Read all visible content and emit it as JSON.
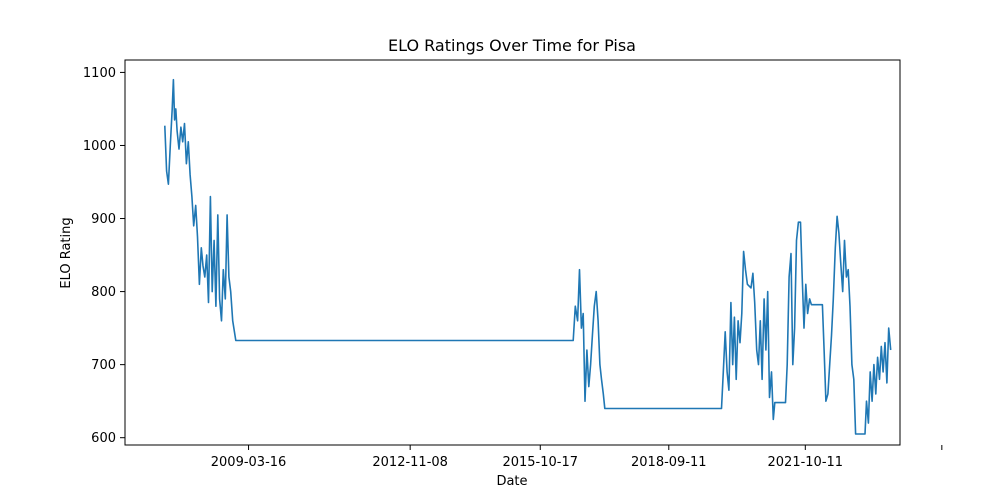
{
  "chart_data": {
    "type": "line",
    "title": "ELO Ratings Over Time for Pisa",
    "xlabel": "Date",
    "ylabel": "ELO Rating",
    "grid": false,
    "legend": "none",
    "ylim": [
      590,
      1117
    ],
    "xlim": [
      "2006-06-01",
      "2023-12-01"
    ],
    "x_ticks": [
      "2009-03-16",
      "2012-11-08",
      "2015-10-17",
      "2018-09-11",
      "2021-10-11",
      ""
    ],
    "y_ticks": [
      600,
      700,
      800,
      900,
      1000,
      1100
    ],
    "series": [
      {
        "color": "#1f77b4",
        "points": [
          [
            "2007-04-25",
            1027
          ],
          [
            "2007-05-10",
            965
          ],
          [
            "2007-05-25",
            947
          ],
          [
            "2007-06-10",
            1000
          ],
          [
            "2007-06-25",
            1050
          ],
          [
            "2007-07-05",
            1090
          ],
          [
            "2007-07-15",
            1035
          ],
          [
            "2007-07-25",
            1050
          ],
          [
            "2007-08-05",
            1020
          ],
          [
            "2007-08-20",
            995
          ],
          [
            "2007-09-05",
            1025
          ],
          [
            "2007-09-20",
            1005
          ],
          [
            "2007-10-05",
            1030
          ],
          [
            "2007-10-20",
            975
          ],
          [
            "2007-11-05",
            1005
          ],
          [
            "2007-11-20",
            960
          ],
          [
            "2007-12-05",
            930
          ],
          [
            "2007-12-20",
            890
          ],
          [
            "2008-01-05",
            918
          ],
          [
            "2008-01-20",
            875
          ],
          [
            "2008-02-05",
            810
          ],
          [
            "2008-02-20",
            860
          ],
          [
            "2008-03-05",
            835
          ],
          [
            "2008-03-20",
            820
          ],
          [
            "2008-04-05",
            850
          ],
          [
            "2008-04-20",
            785
          ],
          [
            "2008-05-05",
            930
          ],
          [
            "2008-05-20",
            800
          ],
          [
            "2008-06-05",
            870
          ],
          [
            "2008-06-20",
            780
          ],
          [
            "2008-07-05",
            905
          ],
          [
            "2008-07-20",
            790
          ],
          [
            "2008-08-05",
            760
          ],
          [
            "2008-08-20",
            830
          ],
          [
            "2008-09-05",
            790
          ],
          [
            "2008-09-20",
            905
          ],
          [
            "2008-10-05",
            820
          ],
          [
            "2008-10-20",
            800
          ],
          [
            "2008-11-05",
            760
          ],
          [
            "2008-12-01",
            733
          ],
          [
            "2016-07-15",
            733
          ],
          [
            "2016-08-01",
            780
          ],
          [
            "2016-08-20",
            760
          ],
          [
            "2016-09-05",
            830
          ],
          [
            "2016-09-20",
            750
          ],
          [
            "2016-10-05",
            770
          ],
          [
            "2016-10-20",
            650
          ],
          [
            "2016-11-05",
            720
          ],
          [
            "2016-11-20",
            670
          ],
          [
            "2016-12-05",
            700
          ],
          [
            "2016-12-20",
            740
          ],
          [
            "2017-01-05",
            780
          ],
          [
            "2017-01-20",
            800
          ],
          [
            "2017-02-05",
            760
          ],
          [
            "2017-02-20",
            700
          ],
          [
            "2017-03-05",
            680
          ],
          [
            "2017-03-20",
            660
          ],
          [
            "2017-04-01",
            640
          ],
          [
            "2019-11-20",
            640
          ],
          [
            "2019-12-05",
            690
          ],
          [
            "2019-12-20",
            745
          ],
          [
            "2020-01-05",
            690
          ],
          [
            "2020-01-20",
            665
          ],
          [
            "2020-02-05",
            785
          ],
          [
            "2020-02-20",
            700
          ],
          [
            "2020-03-05",
            765
          ],
          [
            "2020-03-20",
            680
          ],
          [
            "2020-04-05",
            760
          ],
          [
            "2020-04-20",
            730
          ],
          [
            "2020-05-05",
            770
          ],
          [
            "2020-05-20",
            855
          ],
          [
            "2020-06-05",
            830
          ],
          [
            "2020-06-20",
            810
          ],
          [
            "2020-07-20",
            805
          ],
          [
            "2020-08-05",
            825
          ],
          [
            "2020-08-20",
            785
          ],
          [
            "2020-09-05",
            720
          ],
          [
            "2020-09-20",
            700
          ],
          [
            "2020-10-05",
            760
          ],
          [
            "2020-10-20",
            680
          ],
          [
            "2020-11-05",
            790
          ],
          [
            "2020-11-20",
            720
          ],
          [
            "2020-12-05",
            800
          ],
          [
            "2020-12-20",
            655
          ],
          [
            "2021-01-05",
            690
          ],
          [
            "2021-01-20",
            625
          ],
          [
            "2021-02-01",
            648
          ],
          [
            "2021-05-01",
            648
          ],
          [
            "2021-05-15",
            700
          ],
          [
            "2021-05-30",
            820
          ],
          [
            "2021-06-15",
            852
          ],
          [
            "2021-06-30",
            700
          ],
          [
            "2021-07-15",
            750
          ],
          [
            "2021-07-30",
            870
          ],
          [
            "2021-08-15",
            895
          ],
          [
            "2021-09-01",
            895
          ],
          [
            "2021-09-15",
            820
          ],
          [
            "2021-09-30",
            750
          ],
          [
            "2021-10-15",
            810
          ],
          [
            "2021-10-30",
            770
          ],
          [
            "2021-11-15",
            790
          ],
          [
            "2021-11-30",
            782
          ],
          [
            "2022-03-01",
            782
          ],
          [
            "2022-03-15",
            720
          ],
          [
            "2022-03-30",
            650
          ],
          [
            "2022-04-15",
            660
          ],
          [
            "2022-04-30",
            700
          ],
          [
            "2022-05-15",
            740
          ],
          [
            "2022-05-30",
            790
          ],
          [
            "2022-06-15",
            860
          ],
          [
            "2022-06-30",
            903
          ],
          [
            "2022-07-15",
            880
          ],
          [
            "2022-07-30",
            840
          ],
          [
            "2022-08-15",
            800
          ],
          [
            "2022-08-30",
            870
          ],
          [
            "2022-09-15",
            820
          ],
          [
            "2022-09-30",
            830
          ],
          [
            "2022-10-15",
            780
          ],
          [
            "2022-10-30",
            700
          ],
          [
            "2022-11-15",
            680
          ],
          [
            "2022-11-30",
            605
          ],
          [
            "2023-02-15",
            605
          ],
          [
            "2023-02-28",
            650
          ],
          [
            "2023-03-15",
            620
          ],
          [
            "2023-03-30",
            690
          ],
          [
            "2023-04-15",
            650
          ],
          [
            "2023-04-30",
            700
          ],
          [
            "2023-05-15",
            660
          ],
          [
            "2023-05-30",
            710
          ],
          [
            "2023-06-15",
            680
          ],
          [
            "2023-06-30",
            725
          ],
          [
            "2023-07-15",
            690
          ],
          [
            "2023-07-30",
            730
          ],
          [
            "2023-08-15",
            675
          ],
          [
            "2023-08-30",
            750
          ],
          [
            "2023-09-15",
            720
          ]
        ]
      }
    ]
  }
}
